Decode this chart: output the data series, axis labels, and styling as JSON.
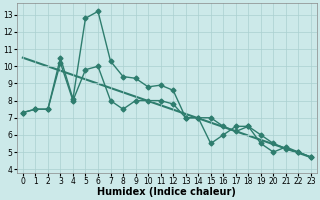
{
  "line1_x": [
    0,
    1,
    2,
    3,
    4,
    5,
    6,
    7,
    8,
    9,
    10,
    11,
    12,
    13,
    14,
    15,
    16,
    17,
    18,
    19,
    20,
    21,
    22,
    23
  ],
  "line1_y": [
    7.3,
    7.5,
    7.5,
    10.5,
    8.1,
    12.8,
    13.2,
    10.3,
    9.4,
    9.3,
    8.8,
    8.9,
    8.6,
    7.0,
    7.0,
    5.5,
    6.0,
    6.5,
    6.5,
    5.5,
    5.0,
    5.3,
    5.0,
    4.7
  ],
  "line2_x": [
    0,
    1,
    2,
    3,
    4,
    5,
    6,
    7,
    8,
    9,
    10,
    11,
    12,
    13,
    14,
    15,
    16,
    17,
    18,
    19,
    20,
    21,
    22,
    23
  ],
  "line2_y": [
    7.3,
    7.5,
    7.5,
    10.2,
    8.0,
    9.8,
    10.0,
    8.0,
    7.5,
    8.0,
    8.0,
    8.0,
    7.8,
    7.0,
    7.0,
    7.0,
    6.5,
    6.2,
    6.5,
    6.0,
    5.5,
    5.2,
    5.0,
    4.7
  ],
  "line3_x": [
    0,
    23
  ],
  "line3_y": [
    10.5,
    4.7
  ],
  "bg_color": "#cce9e9",
  "line_color": "#2e7d6e",
  "grid_color": "#aad0d0",
  "xlabel": "Humidex (Indice chaleur)",
  "xlim": [
    -0.5,
    23.5
  ],
  "ylim": [
    3.8,
    13.7
  ],
  "yticks": [
    4,
    5,
    6,
    7,
    8,
    9,
    10,
    11,
    12,
    13
  ],
  "xticks": [
    0,
    1,
    2,
    3,
    4,
    5,
    6,
    7,
    8,
    9,
    10,
    11,
    12,
    13,
    14,
    15,
    16,
    17,
    18,
    19,
    20,
    21,
    22,
    23
  ],
  "marker": "D",
  "markersize": 2.5,
  "linewidth": 1.0,
  "tick_fontsize": 5.5,
  "xlabel_fontsize": 7.0
}
